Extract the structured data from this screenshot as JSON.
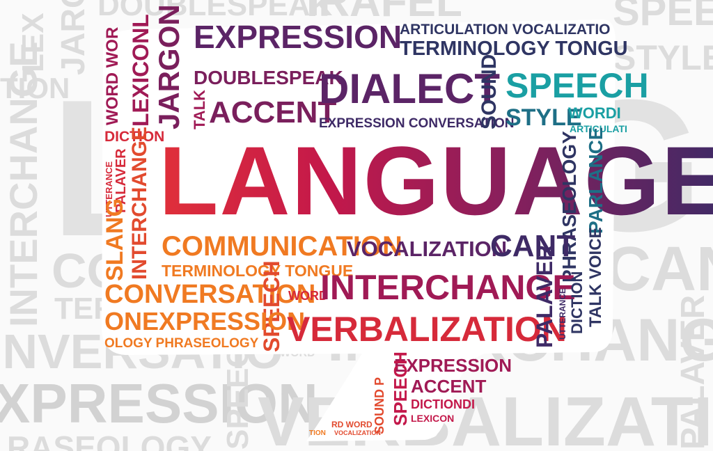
{
  "background_words": {
    "top_doublespeak": "DOUBLESPEAK",
    "top_right_a": "IRAFEL",
    "top_speech": "SPEE",
    "top_style": "STYLE",
    "left_lexicon": "LEX",
    "left_jargon": "JARG",
    "left_tion": "TION",
    "left_interchange": "INTERCHANGE",
    "left_co": "CO",
    "left_term": "TERM",
    "left_inversation": "INVERSATIO",
    "left_expression": "XPRESSION",
    "left_raseology": "RASEOLOGY",
    "big_l": "L",
    "big_e": "GE",
    "right_cant": "CANT",
    "right_interchange": "INTERCHANGE",
    "right_palaver": "PALAVER",
    "bottom_verbalization": "VERBALIZATION",
    "bottom_speech": "SPEECH",
    "bottom_word": "WORD",
    "right_panel_word": "SPEEC"
  },
  "cloud_words": {
    "language": "LANGUAGE",
    "expression_top": "EXPRESSION",
    "articulation_vocalization": "ARTICULATION VOCALIZATIO",
    "terminology_tongue": "TERMINOLOGY TONGU",
    "jargon": "JARGON",
    "lexicon": "LEXICONL",
    "word_word": "WORD WOR",
    "doublespeak": "DOUBLESPEAK",
    "talk": "TALK",
    "accent": "ACCENT",
    "dialect": "DIALECT",
    "expression_conversation": "EXPRESSION CONVERSATION",
    "sound": "SOUND",
    "speech": "SPEECH",
    "style": "STYLE",
    "wordi": "WORDI",
    "articulati": "ARTICULATI",
    "diction": "DICTION",
    "utterance": "UTTERANCE",
    "palaver": "PALAVER",
    "interchange_v": "INTERCHANGE",
    "slang": "SLANG",
    "phraseology": "PHRASEOLOGY",
    "parlance": "PARLANCE",
    "talk_voice": "TALK VOICE",
    "communication": "COMMUNICATION",
    "vocalization": "VOCALIZATION",
    "cant": "CANT",
    "terminology_tongue_2": "TERMINOLOGY TONGUE",
    "conversation": "CONVERSATION",
    "speech_v": "SPEECH",
    "word": "WORD",
    "interchange": "INTERCHANGE",
    "onexpression": "ONEXPRESSION",
    "ology_phraseology": "OLOGY PHRASEOLOGY",
    "verbalization": "VERBALIZATION",
    "palaver_v": "PALAVER",
    "utterance_v": "UTTERANCE",
    "diction_v": "DICTION",
    "talk_voice_v": "TALK VOICE",
    "expression_tail": "EXPRESSION",
    "accent_tail": "ACCENT",
    "dictiondi": "DICTIONDI",
    "lexicon_tail": "LEXICON",
    "speech_tail": "SPEECH",
    "sound_p": "SOUND P",
    "rd_word": "RD WORD",
    "vocalization_tail": "VOCALIZATION",
    "tion": "TION"
  },
  "colors": {
    "red": "#d62a3a",
    "crimson": "#c3184a",
    "magenta": "#a01a55",
    "plum": "#7a1f5c",
    "purple": "#5b2466",
    "indigo": "#3e2a66",
    "navy": "#2f3563",
    "teal": "#1a9fa3",
    "orange": "#f07a22",
    "amber": "#f5a020",
    "bg_gray": "#dcdcdc"
  }
}
